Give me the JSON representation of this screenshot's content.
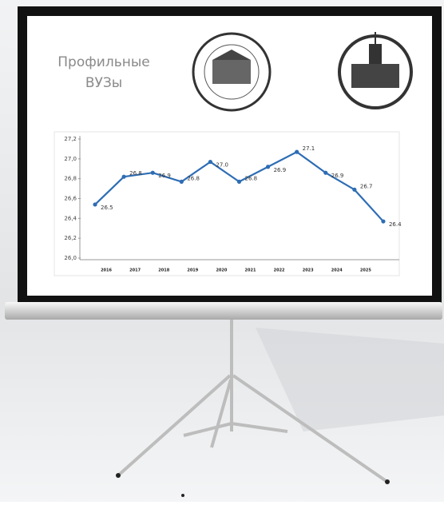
{
  "heading": "Профильные ВУЗы",
  "chart_data": {
    "type": "line",
    "categories": [
      "2016",
      "2017",
      "2018",
      "2019",
      "2020",
      "2021",
      "2022",
      "2023",
      "2024",
      "2025",
      null
    ],
    "series": [
      {
        "name": null,
        "color": "#2e6db4",
        "values": [
          26.54,
          26.82,
          26.86,
          26.77,
          26.97,
          26.77,
          26.92,
          27.07,
          26.86,
          26.69,
          26.37
        ],
        "value_labels": [
          "26.5",
          "26.8",
          "26.9",
          "26.8",
          "27.0",
          "26.8",
          "26.9",
          "27.1",
          "26.9",
          "26.7",
          "26.4"
        ]
      }
    ],
    "ylim": [
      26.0,
      27.2
    ],
    "yticks": [
      {
        "value": 26.0,
        "label": "26,0"
      },
      {
        "value": 26.2,
        "label": "26,2"
      },
      {
        "value": 26.4,
        "label": "26,4"
      },
      {
        "value": 26.6,
        "label": "26,6"
      },
      {
        "value": 26.8,
        "label": "26,8"
      },
      {
        "value": 27.0,
        "label": "27,0"
      },
      {
        "value": 27.2,
        "label": "27,2"
      }
    ],
    "grid": false
  }
}
